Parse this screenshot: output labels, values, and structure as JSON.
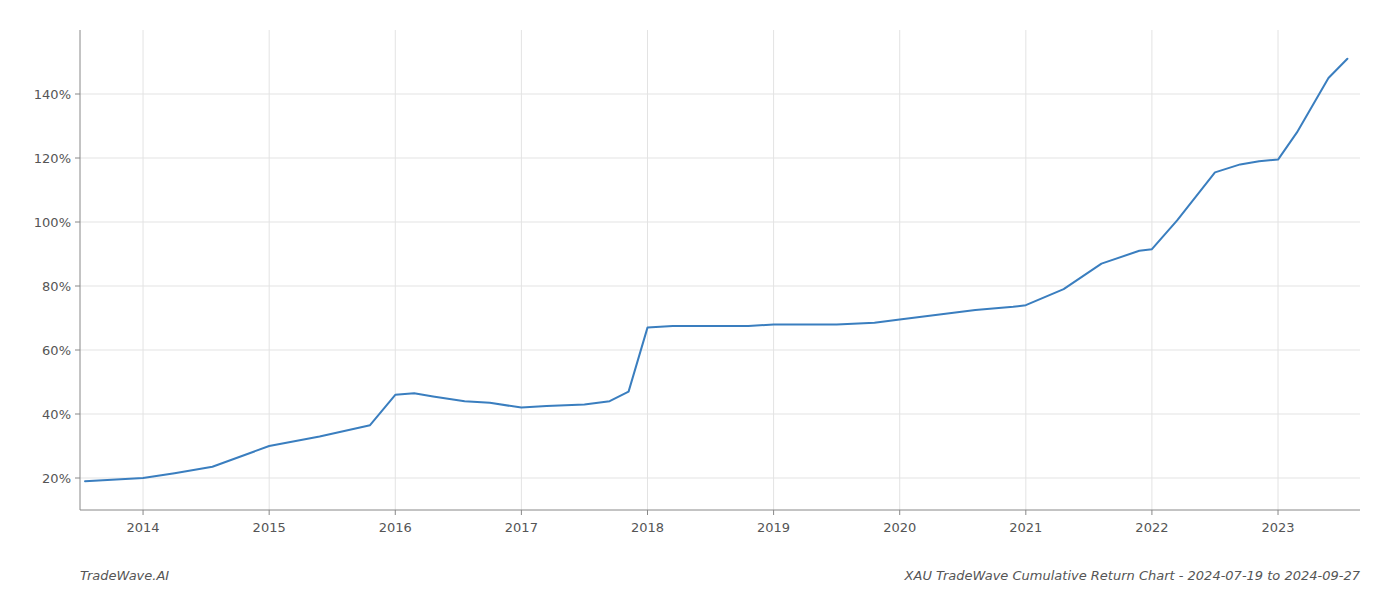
{
  "chart_data": {
    "type": "line",
    "title": "XAU TradeWave Cumulative Return Chart - 2024-07-19 to 2024-09-27",
    "annotations": [
      "TradeWave.AI"
    ],
    "color": "#3a7ebf",
    "grid": true,
    "x": [
      2013.54,
      2014.0,
      2014.25,
      2014.55,
      2015.0,
      2015.4,
      2015.8,
      2016.0,
      2016.15,
      2016.3,
      2016.55,
      2016.75,
      2017.0,
      2017.2,
      2017.5,
      2017.7,
      2017.85,
      2018.0,
      2018.2,
      2018.5,
      2018.8,
      2019.0,
      2019.2,
      2019.5,
      2019.8,
      2020.0,
      2020.3,
      2020.6,
      2020.9,
      2021.0,
      2021.3,
      2021.6,
      2021.9,
      2022.0,
      2022.2,
      2022.5,
      2022.7,
      2022.85,
      2023.0,
      2023.15,
      2023.4,
      2023.55
    ],
    "values": [
      19.0,
      20.0,
      21.5,
      23.5,
      30.0,
      33.0,
      36.5,
      46.0,
      46.5,
      45.5,
      44.0,
      43.5,
      42.0,
      42.5,
      43.0,
      44.0,
      47.0,
      67.0,
      67.5,
      67.5,
      67.5,
      68.0,
      68.0,
      68.0,
      68.5,
      69.5,
      71.0,
      72.5,
      73.5,
      74.0,
      79.0,
      87.0,
      91.0,
      91.5,
      100.5,
      115.5,
      118.0,
      119.0,
      119.5,
      128.0,
      145.0,
      151.0
    ],
    "xlim": [
      2013.5,
      2023.65
    ],
    "ylim": [
      10,
      160
    ],
    "xticks": [
      2014,
      2015,
      2016,
      2017,
      2018,
      2019,
      2020,
      2021,
      2022,
      2023
    ],
    "yticks": [
      {
        "value": 20,
        "label": "20%"
      },
      {
        "value": 40,
        "label": "40%"
      },
      {
        "value": 60,
        "label": "60%"
      },
      {
        "value": 80,
        "label": "80%"
      },
      {
        "value": 100,
        "label": "100%"
      },
      {
        "value": 120,
        "label": "120%"
      },
      {
        "value": 140,
        "label": "140%"
      }
    ]
  }
}
